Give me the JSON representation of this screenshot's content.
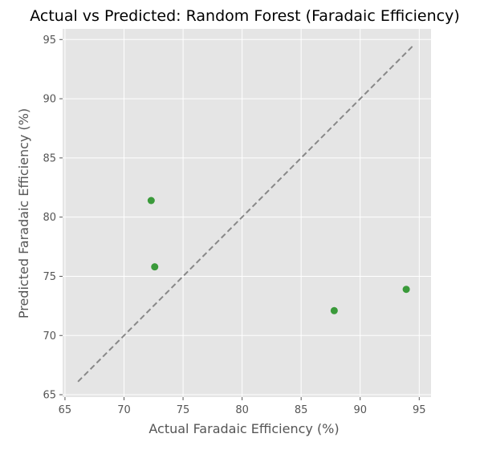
{
  "chart_data": {
    "type": "scatter",
    "title": "Actual vs Predicted: Random Forest (Faradaic Efficiency)",
    "xlabel": "Actual Faradaic Efficiency (%)",
    "ylabel": "Predicted Faradaic Efficiency (%)",
    "xlim": [
      64.8,
      96.0
    ],
    "ylim": [
      64.8,
      95.9
    ],
    "xticks": [
      "65",
      "70",
      "75",
      "80",
      "85",
      "90",
      "95"
    ],
    "yticks": [
      "65",
      "70",
      "75",
      "80",
      "85",
      "90",
      "95"
    ],
    "grid": true,
    "point_color": "#3a9a3a",
    "reference_line": {
      "style": "dashed",
      "color": "#888888",
      "from": [
        66.1,
        66.1
      ],
      "to": [
        94.5,
        94.5
      ]
    },
    "points": [
      {
        "x": 72.3,
        "y": 81.4
      },
      {
        "x": 72.6,
        "y": 75.8
      },
      {
        "x": 87.8,
        "y": 72.1
      },
      {
        "x": 93.9,
        "y": 73.9
      }
    ]
  }
}
